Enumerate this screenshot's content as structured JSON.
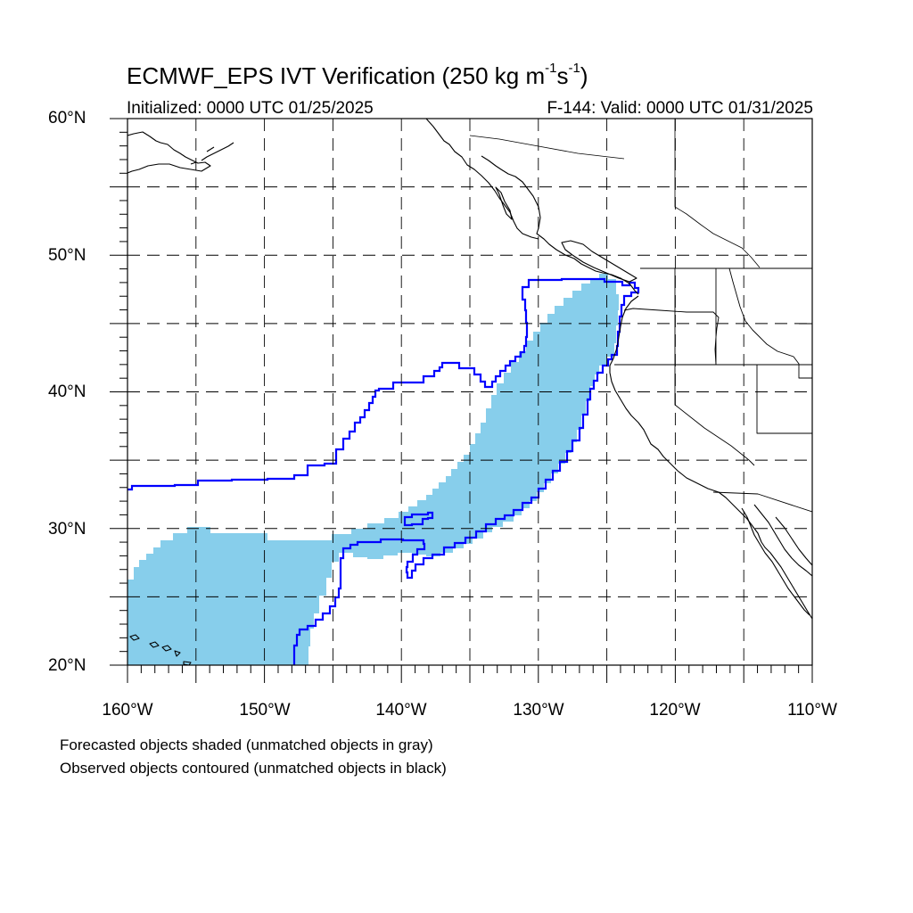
{
  "title": {
    "prefix": "ECMWF_EPS IVT Verification (250 kg m",
    "exp1": "-1",
    "mid": "s",
    "exp2": "-1",
    "suffix": ")"
  },
  "subtitle_left": "Initialized: 0000 UTC 01/25/2025",
  "subtitle_right": "F-144: Valid: 0000 UTC 01/31/2025",
  "lat_labels": [
    "60°N",
    "50°N",
    "40°N",
    "30°N",
    "20°N"
  ],
  "lon_labels": [
    "160°W",
    "150°W",
    "140°W",
    "130°W",
    "120°W",
    "110°W"
  ],
  "footnotes": [
    "Forecasted objects shaded (unmatched objects in gray)",
    "Observed objects contoured (unmatched objects in black)"
  ],
  "colors": {
    "forecast_fill": "#87CEEB",
    "observed_contour": "#0000FF",
    "coastline": "#000000",
    "grid": "#000000"
  },
  "map": {
    "lon_range": [
      -160,
      -110
    ],
    "lat_range": [
      20,
      60
    ],
    "grid_spacing_deg": 5,
    "grid_style": "dashed"
  }
}
